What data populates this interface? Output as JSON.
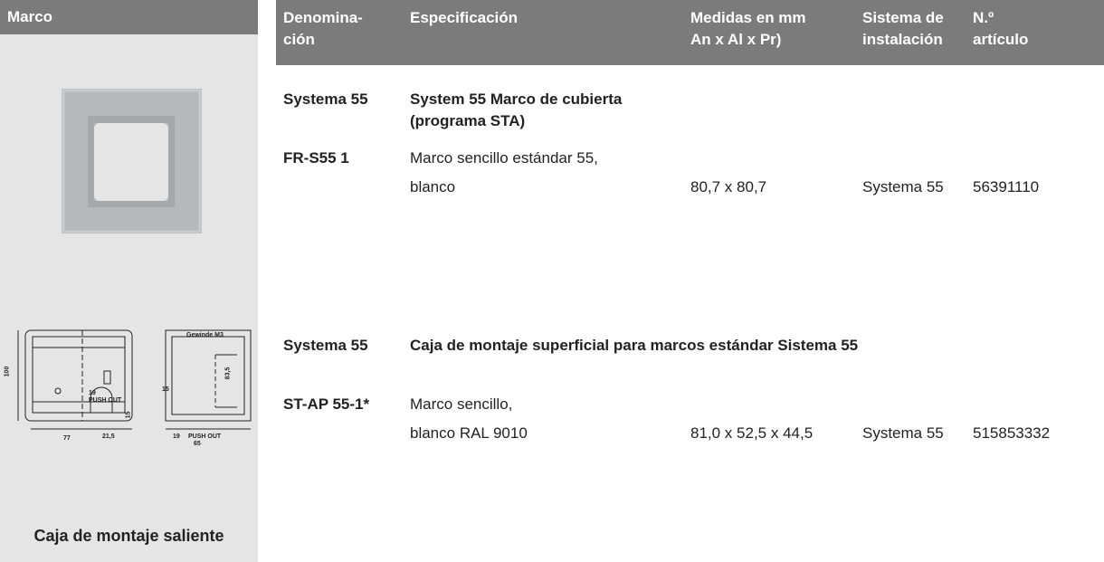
{
  "sidebar": {
    "title": "Marco",
    "caption": "Caja de montaje saliente",
    "drawing_labels": [
      "Gewinde M3",
      "100",
      "19",
      "PUSH OUT",
      "21,5",
      "77",
      "15",
      "83,5",
      "15",
      "19",
      "PUSH OUT",
      "65"
    ]
  },
  "table": {
    "header": [
      [
        "Denomina-",
        "ción"
      ],
      [
        "Especificación"
      ],
      [
        "Medidas en mm",
        "An x Al x Pr)"
      ],
      [
        "Sistema de",
        "instalación"
      ],
      [
        "N.º",
        "artículo"
      ]
    ],
    "sections": [
      {
        "name": "Systema 55",
        "title": [
          "System 55 Marco de cubierta",
          "(programa STA)"
        ],
        "items": [
          {
            "code": "FR-S55 1",
            "spec": [
              "Marco sencillo estándar 55,",
              "blanco"
            ],
            "size": "80,7 x 80,7",
            "system": "Systema 55",
            "article": "56391110"
          }
        ]
      },
      {
        "name": "Systema 55",
        "title": [
          "Caja de montaje superficial para marcos estándar Sistema 55"
        ],
        "items": [
          {
            "code": "ST-AP 55-1*",
            "spec": [
              "Marco sencillo,",
              "blanco RAL 9010"
            ],
            "size": "81,0 x 52,5 x 44,5",
            "system": "Systema 55",
            "article": "515853332"
          }
        ]
      }
    ]
  }
}
